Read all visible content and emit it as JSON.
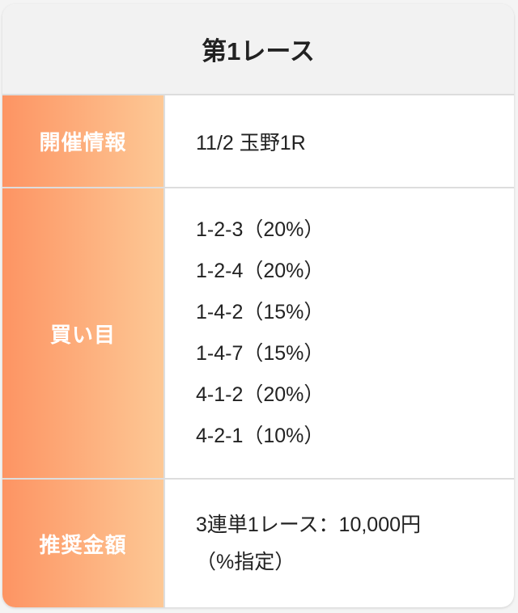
{
  "title": "第1レース",
  "rows": {
    "info": {
      "label": "開催情報",
      "value": "11/2 玉野1R"
    },
    "picks": {
      "label": "買い目",
      "items": [
        "1-2-3（20%）",
        "1-2-4（20%）",
        "1-4-2（15%）",
        "1-4-7（15%）",
        "4-1-2（20%）",
        "4-2-1（10%）"
      ]
    },
    "amount": {
      "label": "推奨金額",
      "line1": "3連単1レース：10,000円",
      "line2": "（%指定）"
    }
  },
  "colors": {
    "gradient_start": "#fd9463",
    "gradient_end": "#fdc895",
    "header_bg": "#f2f2f2"
  }
}
